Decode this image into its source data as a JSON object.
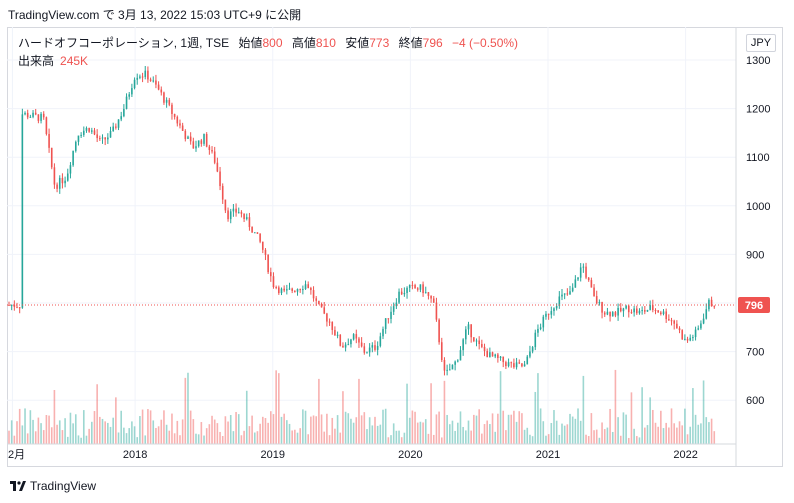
{
  "caption": "TradingView.com で 3月 13, 2022 15:03 UTC+9 に公開",
  "legend": {
    "symbol": "ハードオフコーポレーション, 1週, TSE",
    "open_label": "始値",
    "open": "800",
    "high_label": "高値",
    "high": "810",
    "low_label": "安値",
    "low": "773",
    "close_label": "終値",
    "close": "796",
    "change": "−4 (−0.50%)"
  },
  "volume": {
    "label": "出来高",
    "value": "245K"
  },
  "currency": "JPY",
  "footer": "TradingView",
  "colors": {
    "up": "#26a69a",
    "down": "#ef5350",
    "grid": "#f0f3fa",
    "last_price": "#ef5350"
  },
  "chart_data": {
    "type": "candlestick",
    "interval": "1週",
    "x_ticks": [
      "2月",
      "2018",
      "2019",
      "2020",
      "2021",
      "2022"
    ],
    "y_ticks": [
      600,
      700,
      800,
      900,
      1000,
      1100,
      1200,
      1300
    ],
    "ylim": [
      520,
      1330
    ],
    "last_price": 796,
    "price_path": [
      [
        "2017-02",
        1190
      ],
      [
        "2017-04",
        1180
      ],
      [
        "2017-05",
        1040
      ],
      [
        "2017-06",
        1060
      ],
      [
        "2017-07",
        1150
      ],
      [
        "2017-08",
        1160
      ],
      [
        "2017-09",
        1130
      ],
      [
        "2017-10",
        1150
      ],
      [
        "2017-11",
        1200
      ],
      [
        "2017-12",
        1270
      ],
      [
        "2018-01",
        1270
      ],
      [
        "2018-02",
        1240
      ],
      [
        "2018-03",
        1200
      ],
      [
        "2018-04",
        1160
      ],
      [
        "2018-05",
        1120
      ],
      [
        "2018-06",
        1140
      ],
      [
        "2018-07",
        1090
      ],
      [
        "2018-08",
        980
      ],
      [
        "2018-09",
        990
      ],
      [
        "2018-10",
        960
      ],
      [
        "2018-11",
        920
      ],
      [
        "2018-12",
        840
      ],
      [
        "2019-01",
        820
      ],
      [
        "2019-02",
        830
      ],
      [
        "2019-03",
        840
      ],
      [
        "2019-04",
        790
      ],
      [
        "2019-05",
        760
      ],
      [
        "2019-06",
        710
      ],
      [
        "2019-07",
        730
      ],
      [
        "2019-08",
        700
      ],
      [
        "2019-09",
        710
      ],
      [
        "2019-10",
        770
      ],
      [
        "2019-11",
        820
      ],
      [
        "2019-12",
        830
      ],
      [
        "2020-01",
        830
      ],
      [
        "2020-02",
        800
      ],
      [
        "2020-03",
        650
      ],
      [
        "2020-04",
        680
      ],
      [
        "2020-05",
        750
      ],
      [
        "2020-06",
        710
      ],
      [
        "2020-07",
        690
      ],
      [
        "2020-08",
        680
      ],
      [
        "2020-09",
        670
      ],
      [
        "2020-10",
        670
      ],
      [
        "2020-11",
        740
      ],
      [
        "2020-12",
        780
      ],
      [
        "2021-01",
        810
      ],
      [
        "2021-02",
        820
      ],
      [
        "2021-03",
        880
      ],
      [
        "2021-04",
        810
      ],
      [
        "2021-05",
        780
      ],
      [
        "2021-06",
        780
      ],
      [
        "2021-07",
        790
      ],
      [
        "2021-08",
        780
      ],
      [
        "2021-09",
        790
      ],
      [
        "2021-10",
        780
      ],
      [
        "2021-11",
        760
      ],
      [
        "2021-12",
        720
      ],
      [
        "2022-01",
        740
      ],
      [
        "2022-02",
        800
      ],
      [
        "2022-03",
        796
      ]
    ],
    "volume_ylim": [
      0,
      1000
    ]
  }
}
